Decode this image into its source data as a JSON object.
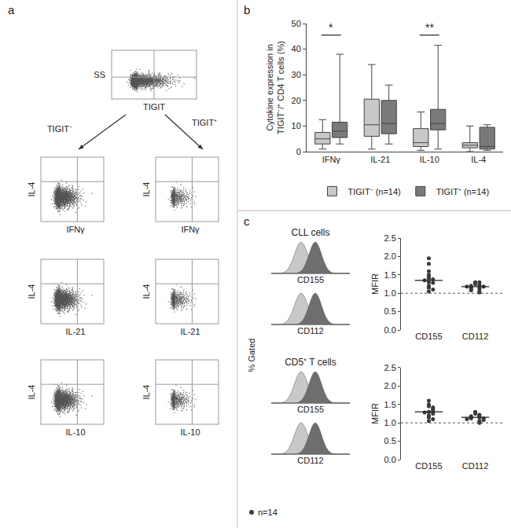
{
  "panel_labels": [
    "a",
    "b",
    "c"
  ],
  "panel_a": {
    "gate_plot": {
      "ylabel": "SS",
      "xlabel": "TIGIT"
    },
    "populations": [
      "TIGIT⁻",
      "TIGIT⁺"
    ],
    "dot_plots": [
      {
        "ylabel": "IL-4",
        "xlabel": "IFNγ"
      },
      {
        "ylabel": "IL-4",
        "xlabel": "IL-21"
      },
      {
        "ylabel": "IL-4",
        "xlabel": "IL-10"
      }
    ]
  },
  "panel_c": {
    "ylabel": "% Gated",
    "sections": [
      {
        "title": "CLL cells",
        "histograms": [
          "CD155",
          "CD112"
        ]
      },
      {
        "title": "CD5⁺ T cells",
        "histograms": [
          "CD155",
          "CD112"
        ]
      }
    ],
    "note": {
      "marker": "circle",
      "text": "n=14"
    }
  },
  "chart_data": [
    {
      "type": "box",
      "ylabel": [
        "Cytokine expression in",
        "TIGIT⁻/⁺ CD4 T cells (%)"
      ],
      "categories": [
        "IFNγ",
        "IL-21",
        "IL-10",
        "IL-4"
      ],
      "series": [
        {
          "name": "TIGIT⁻ (n=14)",
          "color": "#c8c8c8",
          "lowerfence": [
            1,
            1,
            0.5,
            0
          ],
          "q1": [
            3,
            6,
            2,
            1.5
          ],
          "median": [
            5,
            10.5,
            3.5,
            2.5
          ],
          "q3": [
            7.5,
            20.5,
            9,
            3.5
          ],
          "upperfence": [
            12.5,
            34,
            15.5,
            10
          ]
        },
        {
          "name": "TIGIT⁺ (n=14)",
          "color": "#7a7a7a",
          "lowerfence": [
            3,
            3,
            1,
            0.5
          ],
          "q1": [
            5.5,
            7,
            8.5,
            1
          ],
          "median": [
            8,
            11,
            11,
            2
          ],
          "q3": [
            11.5,
            20,
            16.5,
            9.5
          ],
          "upperfence": [
            38,
            26,
            41.5,
            10.5
          ]
        }
      ],
      "ylim": [
        0,
        50
      ],
      "yticks": [
        0,
        10,
        20,
        30,
        40,
        50
      ],
      "significance": [
        {
          "category": "IFNγ",
          "label": "*",
          "y": 45.5
        },
        {
          "category": "IL-10",
          "label": "**",
          "y": 45.5
        }
      ],
      "legend": "bottom"
    },
    {
      "type": "scatter",
      "ylabel": "MFIR",
      "categories": [
        "CD155",
        "CD112"
      ],
      "values": [
        [
          1.95,
          1.8,
          1.6,
          1.5,
          1.45,
          1.4,
          1.38,
          1.35,
          1.3,
          1.28,
          1.2,
          1.15,
          1.1,
          1.05
        ],
        [
          1.3,
          1.3,
          1.25,
          1.22,
          1.2,
          1.2,
          1.18,
          1.18,
          1.15,
          1.12,
          1.1,
          1.08,
          1.05,
          1.02
        ]
      ],
      "medians": [
        1.35,
        1.18
      ],
      "reference_line": 1,
      "ylim": [
        0,
        2.5
      ],
      "yticks": [
        {
          "value": 0,
          "label": "0.0"
        },
        0.5,
        {
          "value": 1,
          "label": "1.0"
        },
        1.5,
        {
          "value": 2,
          "label": "2.0"
        },
        2.5
      ],
      "color": "#3a3a3a",
      "marker": "circle"
    },
    {
      "type": "scatter",
      "ylabel": "MFIR",
      "categories": [
        "CD155",
        "CD112"
      ],
      "values": [
        [
          1.6,
          1.5,
          1.45,
          1.42,
          1.38,
          1.35,
          1.3,
          1.3,
          1.28,
          1.25,
          1.2,
          1.15,
          1.1,
          1.05
        ],
        [
          1.3,
          1.25,
          1.22,
          1.2,
          1.18,
          1.15,
          1.15,
          1.12,
          1.12,
          1.1,
          1.08,
          1.05,
          1.02,
          1.0
        ]
      ],
      "medians": [
        1.3,
        1.15
      ],
      "reference_line": 1,
      "ylim": [
        0,
        2.5
      ],
      "yticks": [
        {
          "value": 0,
          "label": "0.0"
        },
        0.5,
        {
          "value": 1,
          "label": "1.0"
        },
        1.5,
        {
          "value": 2,
          "label": "2.0"
        },
        2.5
      ],
      "color": "#3a3a3a",
      "marker": "circle"
    }
  ]
}
